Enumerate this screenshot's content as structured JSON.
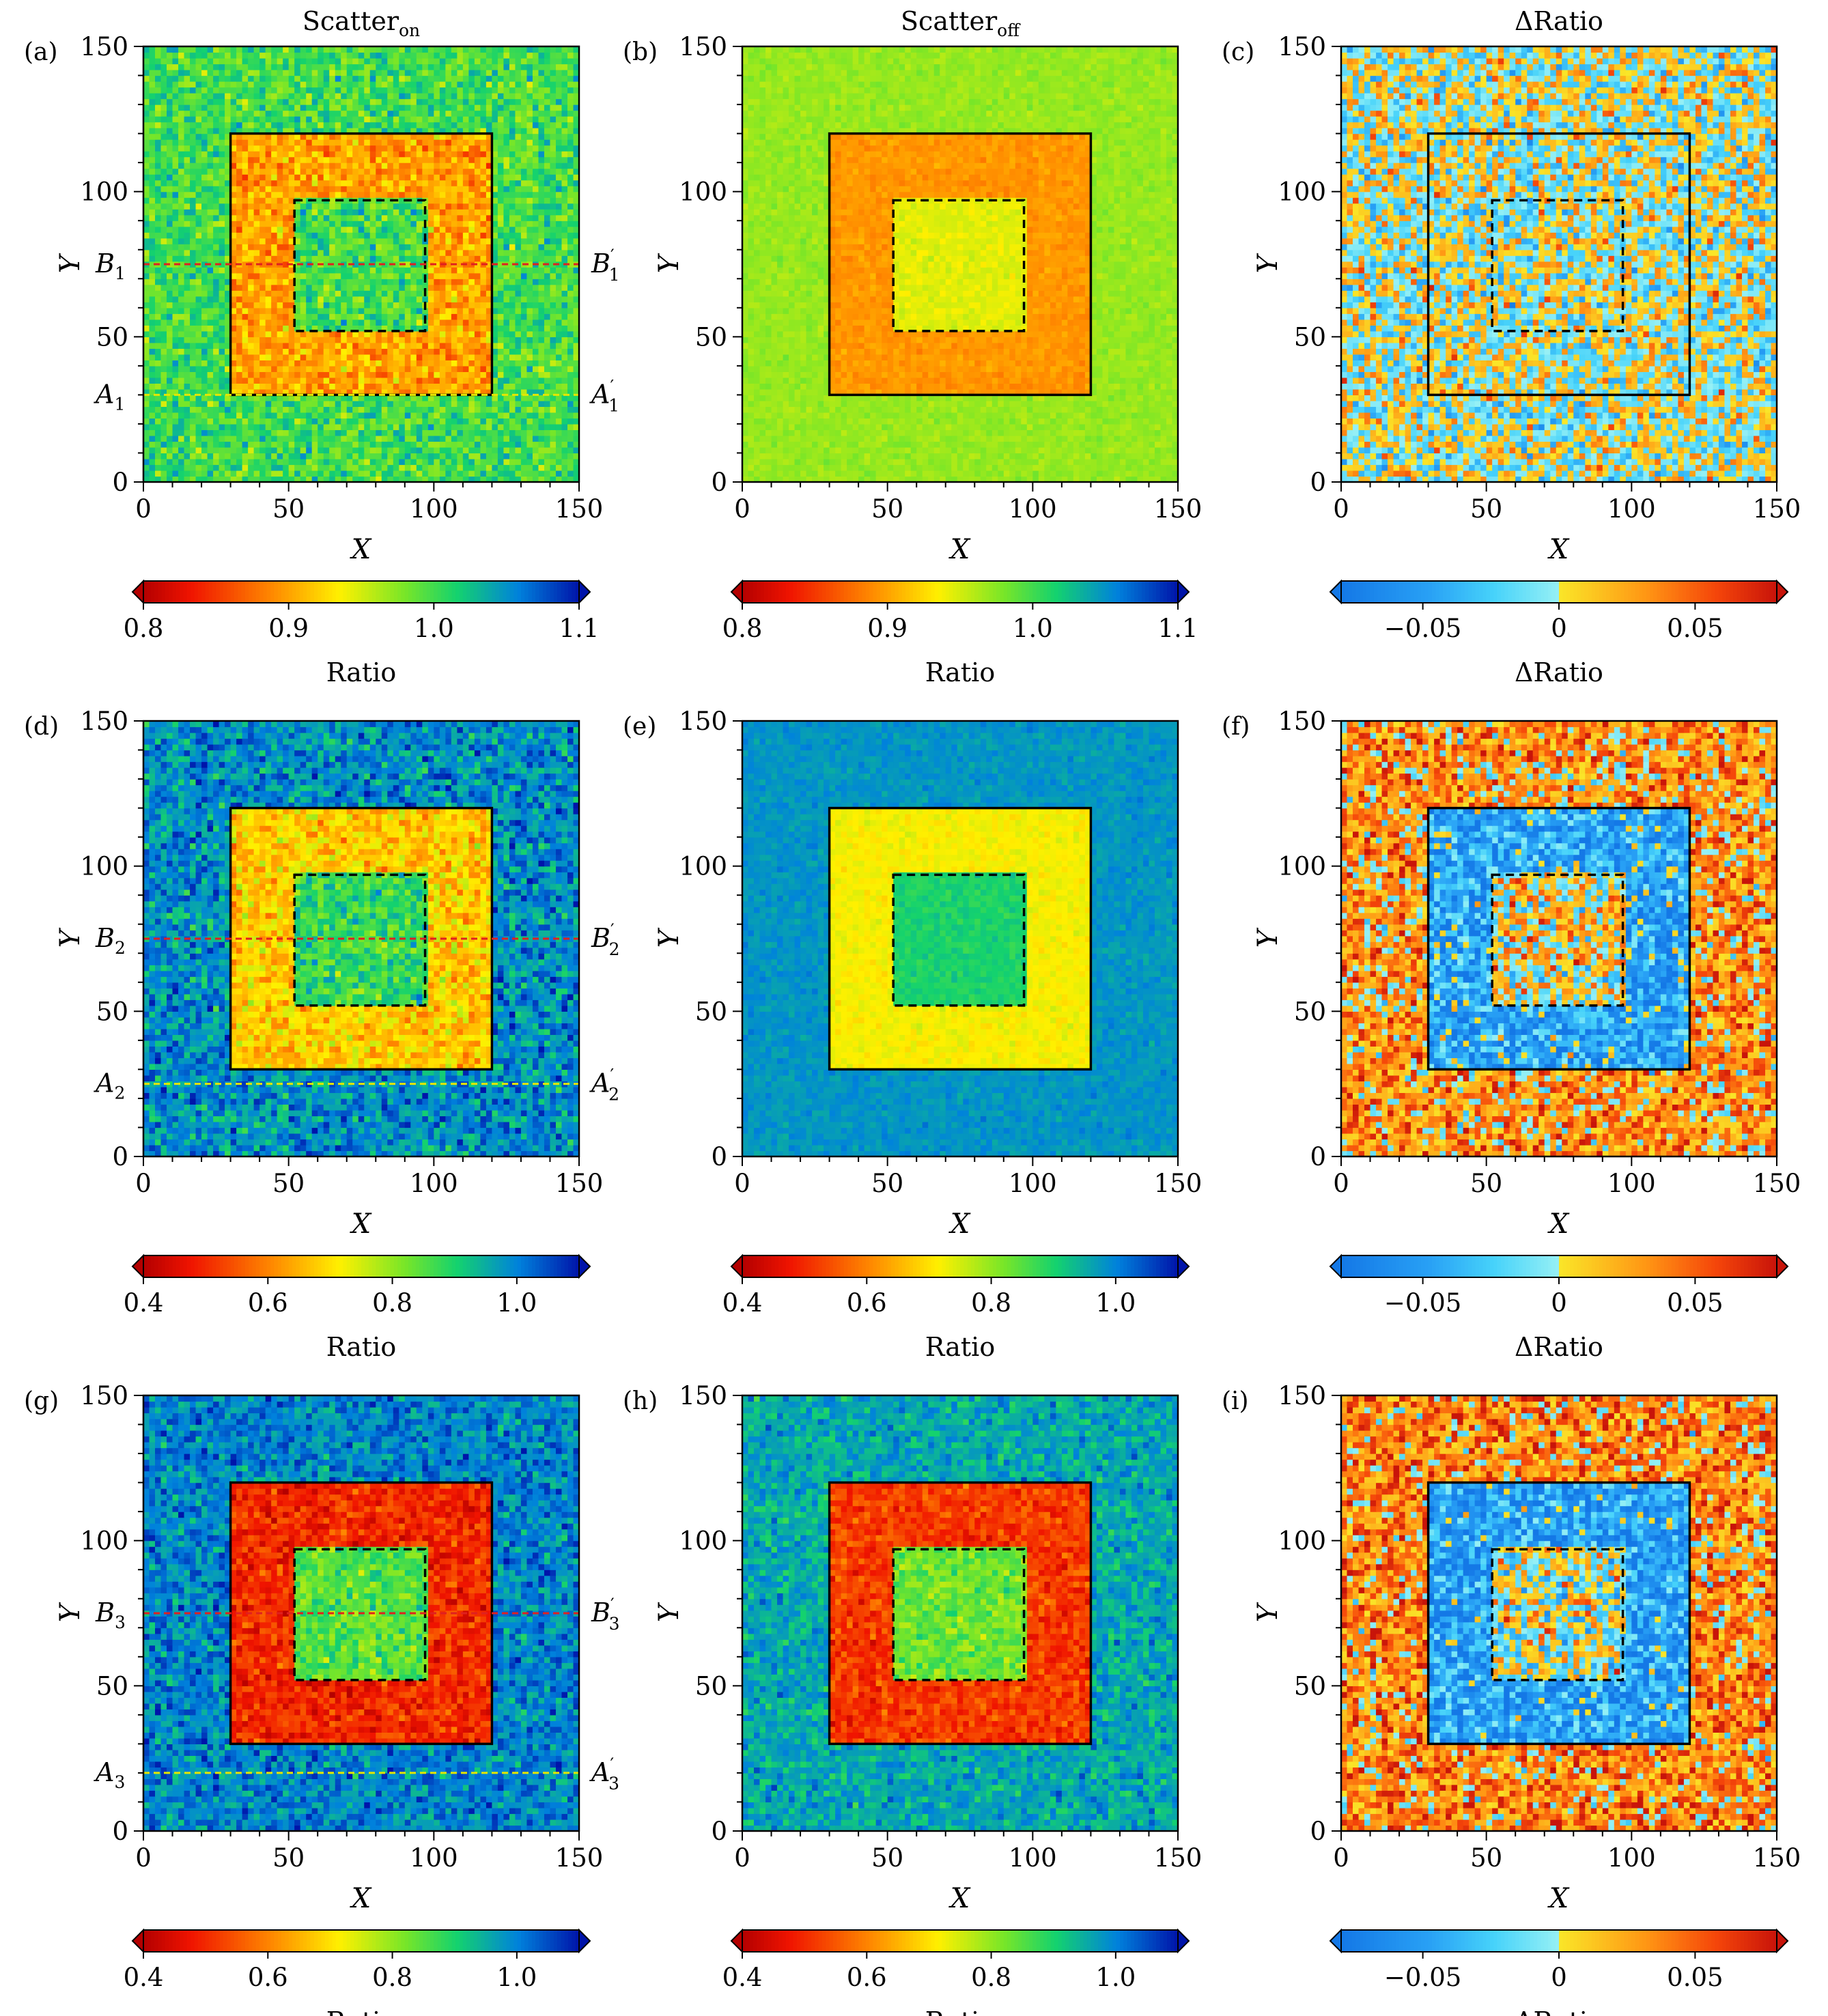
{
  "chart_data": [
    {
      "id": "a",
      "type": "heatmap",
      "panel_label": "(a)",
      "title": "Scatter",
      "title_sub": "on",
      "xlabel": "X",
      "ylabel": "Y",
      "xlim": [
        0,
        150
      ],
      "ylim": [
        0,
        150
      ],
      "xticks": [
        "0",
        "50",
        "100",
        "150"
      ],
      "yticks": [
        "0",
        "50",
        "100",
        "150"
      ],
      "colorbar": {
        "label": "Ratio",
        "range": [
          0.8,
          1.1
        ],
        "ticks": [
          0.8,
          0.9,
          1.0,
          1.1
        ],
        "tick_labels": [
          "0.8",
          "0.9",
          "1.0",
          "1.1"
        ],
        "colormap": "jet_reversed",
        "extend": "both"
      },
      "regions": {
        "outer_value": 1.0,
        "frame_value": 0.9,
        "inner_value": 1.0,
        "noise": 0.03,
        "frame_box": [
          30,
          30,
          120,
          120
        ],
        "inner_box": [
          52,
          52,
          97,
          97
        ]
      },
      "lines": [
        {
          "y": 75,
          "color": "#e02020",
          "left_label": "B",
          "left_sub": "1",
          "right_label": "B",
          "right_sub": "1"
        },
        {
          "y": 30,
          "color": "#e6e600",
          "left_label": "A",
          "left_sub": "1",
          "right_label": "A",
          "right_sub": "1"
        }
      ]
    },
    {
      "id": "b",
      "type": "heatmap",
      "panel_label": "(b)",
      "title": "Scatter",
      "title_sub": "off",
      "xlabel": "X",
      "ylabel": "Y",
      "xlim": [
        0,
        150
      ],
      "ylim": [
        0,
        150
      ],
      "xticks": [
        "0",
        "50",
        "100",
        "150"
      ],
      "yticks": [
        "0",
        "50",
        "100",
        "150"
      ],
      "colorbar": {
        "label": "Ratio",
        "range": [
          0.8,
          1.1
        ],
        "ticks": [
          0.8,
          0.9,
          1.0,
          1.1
        ],
        "tick_labels": [
          "0.8",
          "0.9",
          "1.0",
          "1.1"
        ],
        "colormap": "jet_reversed",
        "extend": "both"
      },
      "regions": {
        "outer_value": 0.97,
        "frame_value": 0.895,
        "inner_value": 0.945,
        "noise": 0.008,
        "frame_box": [
          30,
          30,
          120,
          120
        ],
        "inner_box": [
          52,
          52,
          97,
          97
        ]
      },
      "lines": []
    },
    {
      "id": "c",
      "type": "heatmap",
      "panel_label": "(c)",
      "title": "ΔRatio",
      "title_sub": "",
      "xlabel": "X",
      "ylabel": "Y",
      "xlim": [
        0,
        150
      ],
      "ylim": [
        0,
        150
      ],
      "xticks": [
        "0",
        "50",
        "100",
        "150"
      ],
      "yticks": [
        "0",
        "50",
        "100",
        "150"
      ],
      "colorbar": {
        "label": "ΔRatio",
        "range": [
          -0.08,
          0.08
        ],
        "ticks": [
          -0.05,
          0,
          0.05
        ],
        "tick_labels": [
          "−0.05",
          "0",
          "0.05"
        ],
        "colormap": "diverging",
        "extend": "both"
      },
      "regions": {
        "outer_value": 0.0,
        "frame_value": 0.0,
        "inner_value": 0.0,
        "noise": 0.035,
        "frame_box": [
          30,
          30,
          120,
          120
        ],
        "inner_box": [
          52,
          52,
          97,
          97
        ]
      },
      "lines": []
    },
    {
      "id": "d",
      "type": "heatmap",
      "panel_label": "(d)",
      "title": "",
      "title_sub": "",
      "xlabel": "X",
      "ylabel": "Y",
      "xlim": [
        0,
        150
      ],
      "ylim": [
        0,
        150
      ],
      "xticks": [
        "0",
        "50",
        "100",
        "150"
      ],
      "yticks": [
        "0",
        "50",
        "100",
        "150"
      ],
      "colorbar": {
        "label": "Ratio",
        "range": [
          0.4,
          1.1
        ],
        "ticks": [
          0.4,
          0.6,
          0.8,
          1.0
        ],
        "tick_labels": [
          "0.4",
          "0.6",
          "0.8",
          "1.0"
        ],
        "colormap": "jet_reversed",
        "extend": "both"
      },
      "regions": {
        "outer_value": 0.99,
        "frame_value": 0.68,
        "inner_value": 0.88,
        "noise": 0.07,
        "frame_box": [
          30,
          30,
          120,
          120
        ],
        "inner_box": [
          52,
          52,
          97,
          97
        ]
      },
      "lines": [
        {
          "y": 75,
          "color": "#e02020",
          "left_label": "B",
          "left_sub": "2",
          "right_label": "B",
          "right_sub": "2"
        },
        {
          "y": 25,
          "color": "#e6e600",
          "left_label": "A",
          "left_sub": "2",
          "right_label": "A",
          "right_sub": "2"
        }
      ]
    },
    {
      "id": "e",
      "type": "heatmap",
      "panel_label": "(e)",
      "title": "",
      "title_sub": "",
      "xlabel": "X",
      "ylabel": "Y",
      "xlim": [
        0,
        150
      ],
      "ylim": [
        0,
        150
      ],
      "xticks": [
        "0",
        "50",
        "100",
        "150"
      ],
      "yticks": [
        "0",
        "50",
        "100",
        "150"
      ],
      "colorbar": {
        "label": "Ratio",
        "range": [
          0.4,
          1.1
        ],
        "ticks": [
          0.4,
          0.6,
          0.8,
          1.0
        ],
        "tick_labels": [
          "0.4",
          "0.6",
          "0.8",
          "1.0"
        ],
        "colormap": "jet_reversed",
        "extend": "both"
      },
      "regions": {
        "outer_value": 0.98,
        "frame_value": 0.72,
        "inner_value": 0.9,
        "noise": 0.02,
        "frame_box": [
          30,
          30,
          120,
          120
        ],
        "inner_box": [
          52,
          52,
          97,
          97
        ]
      },
      "lines": []
    },
    {
      "id": "f",
      "type": "heatmap",
      "panel_label": "(f)",
      "title": "",
      "title_sub": "",
      "xlabel": "X",
      "ylabel": "Y",
      "xlim": [
        0,
        150
      ],
      "ylim": [
        0,
        150
      ],
      "xticks": [
        "0",
        "50",
        "100",
        "150"
      ],
      "yticks": [
        "0",
        "50",
        "100",
        "150"
      ],
      "colorbar": {
        "label": "ΔRatio",
        "range": [
          -0.08,
          0.08
        ],
        "ticks": [
          -0.05,
          0,
          0.05
        ],
        "tick_labels": [
          "−0.05",
          "0",
          "0.05"
        ],
        "colormap": "diverging",
        "extend": "both"
      },
      "regions": {
        "outer_value": 0.03,
        "frame_value": -0.045,
        "inner_value": 0.01,
        "noise": 0.04,
        "frame_box": [
          30,
          30,
          120,
          120
        ],
        "inner_box": [
          52,
          52,
          97,
          97
        ]
      },
      "lines": []
    },
    {
      "id": "g",
      "type": "heatmap",
      "panel_label": "(g)",
      "title": "",
      "title_sub": "",
      "xlabel": "X",
      "ylabel": "Y",
      "xlim": [
        0,
        150
      ],
      "ylim": [
        0,
        150
      ],
      "xticks": [
        "0",
        "50",
        "100",
        "150"
      ],
      "yticks": [
        "0",
        "50",
        "100",
        "150"
      ],
      "colorbar": {
        "label": "Ratio",
        "range": [
          0.4,
          1.1
        ],
        "ticks": [
          0.4,
          0.6,
          0.8,
          1.0
        ],
        "tick_labels": [
          "0.4",
          "0.6",
          "0.8",
          "1.0"
        ],
        "colormap": "jet_reversed",
        "extend": "both"
      },
      "regions": {
        "outer_value": 1.0,
        "frame_value": 0.5,
        "inner_value": 0.85,
        "noise": 0.06,
        "frame_box": [
          30,
          30,
          120,
          120
        ],
        "inner_box": [
          52,
          52,
          97,
          97
        ]
      },
      "lines": [
        {
          "y": 75,
          "color": "#e02020",
          "left_label": "B",
          "left_sub": "3",
          "right_label": "B",
          "right_sub": "3"
        },
        {
          "y": 20,
          "color": "#e6e600",
          "left_label": "A",
          "left_sub": "3",
          "right_label": "A",
          "right_sub": "3"
        }
      ]
    },
    {
      "id": "h",
      "type": "heatmap",
      "panel_label": "(h)",
      "title": "",
      "title_sub": "",
      "xlabel": "X",
      "ylabel": "Y",
      "xlim": [
        0,
        150
      ],
      "ylim": [
        0,
        150
      ],
      "xticks": [
        "0",
        "50",
        "100",
        "150"
      ],
      "yticks": [
        "0",
        "50",
        "100",
        "150"
      ],
      "colorbar": {
        "label": "Ratio",
        "range": [
          0.4,
          1.1
        ],
        "ticks": [
          0.4,
          0.6,
          0.8,
          1.0
        ],
        "tick_labels": [
          "0.4",
          "0.6",
          "0.8",
          "1.0"
        ],
        "colormap": "jet_reversed",
        "extend": "both"
      },
      "regions": {
        "outer_value": 0.96,
        "frame_value": 0.52,
        "inner_value": 0.83,
        "noise": 0.05,
        "frame_box": [
          30,
          30,
          120,
          120
        ],
        "inner_box": [
          52,
          52,
          97,
          97
        ]
      },
      "lines": []
    },
    {
      "id": "i",
      "type": "heatmap",
      "panel_label": "(i)",
      "title": "",
      "title_sub": "",
      "xlabel": "X",
      "ylabel": "Y",
      "xlim": [
        0,
        150
      ],
      "ylim": [
        0,
        150
      ],
      "xticks": [
        "0",
        "50",
        "100",
        "150"
      ],
      "yticks": [
        "0",
        "50",
        "100",
        "150"
      ],
      "colorbar": {
        "label": "ΔRatio",
        "range": [
          -0.08,
          0.08
        ],
        "ticks": [
          -0.05,
          0,
          0.05
        ],
        "tick_labels": [
          "−0.05",
          "0",
          "0.05"
        ],
        "colormap": "diverging",
        "extend": "both"
      },
      "regions": {
        "outer_value": 0.035,
        "frame_value": -0.05,
        "inner_value": 0.0,
        "noise": 0.04,
        "frame_box": [
          30,
          30,
          120,
          120
        ],
        "inner_box": [
          52,
          52,
          97,
          97
        ]
      },
      "lines": []
    }
  ],
  "colors": {
    "frame_line": "#000000",
    "marker_red": "#e02020",
    "marker_yellow": "#e6e600"
  }
}
